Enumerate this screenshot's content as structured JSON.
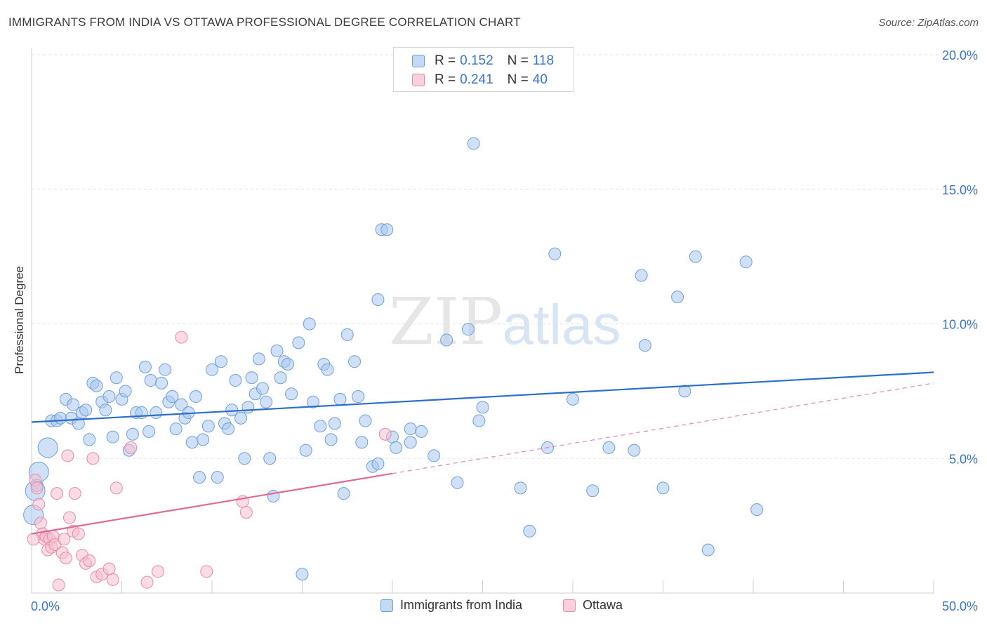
{
  "header": {
    "title": "IMMIGRANTS FROM INDIA VS OTTAWA PROFESSIONAL DEGREE CORRELATION CHART",
    "source": "Source: ZipAtlas.com"
  },
  "watermark": {
    "zip": "ZIP",
    "atlas": "atlas"
  },
  "legend": {
    "rows": [
      {
        "r_label": "R =",
        "r_value": "0.152",
        "n_label": "N =",
        "n_value": "118",
        "color": "#aac8f0"
      },
      {
        "r_label": "R =",
        "r_value": "0.241",
        "n_label": "N =",
        "n_value": "40",
        "color": "#f8bfd0"
      }
    ]
  },
  "bottom_legend": [
    {
      "label": "Immigrants from India",
      "color": "#aac8f0"
    },
    {
      "label": "Ottawa",
      "color": "#f8bfd0"
    }
  ],
  "colors": {
    "india_fill": "#aac8f0",
    "india_stroke": "#6f9fd8",
    "india_line": "#2a6fcc",
    "ottawa_fill": "#f8bfd0",
    "ottawa_stroke": "#e98aa9",
    "ottawa_line": "#e06a96",
    "tick_label": "#3a74c9",
    "grid": "#e3e3e3"
  },
  "chart_data": {
    "type": "scatter",
    "title": "IMMIGRANTS FROM INDIA VS OTTAWA PROFESSIONAL DEGREE CORRELATION CHART",
    "xlabel": "",
    "ylabel": "Professional Degree",
    "xlim": [
      0,
      50
    ],
    "ylim": [
      0,
      20
    ],
    "x_tick_labels": [
      {
        "value": 0,
        "label": "0.0%"
      },
      {
        "value": 50,
        "label": "50.0%"
      }
    ],
    "y_tick_labels": [
      {
        "value": 5,
        "label": "5.0%"
      },
      {
        "value": 10,
        "label": "10.0%"
      },
      {
        "value": 15,
        "label": "15.0%"
      },
      {
        "value": 20,
        "label": "20.0%"
      }
    ],
    "grid": true,
    "legend_position": "top-center",
    "series": [
      {
        "name": "Immigrants from India",
        "r": 0.152,
        "n": 118,
        "trend": {
          "x": [
            0,
            50
          ],
          "y": [
            6.35,
            8.2
          ],
          "style": "solid"
        },
        "points": [
          [
            0.4,
            4.5
          ],
          [
            0.9,
            5.4
          ],
          [
            1.1,
            6.4
          ],
          [
            1.4,
            6.4
          ],
          [
            1.6,
            6.5
          ],
          [
            1.9,
            7.2
          ],
          [
            2.2,
            6.5
          ],
          [
            2.3,
            7.0
          ],
          [
            2.6,
            6.3
          ],
          [
            2.8,
            6.7
          ],
          [
            3.0,
            6.8
          ],
          [
            3.2,
            5.7
          ],
          [
            3.4,
            7.8
          ],
          [
            3.6,
            7.7
          ],
          [
            3.9,
            7.1
          ],
          [
            4.1,
            6.8
          ],
          [
            4.3,
            7.3
          ],
          [
            4.5,
            5.8
          ],
          [
            4.7,
            8.0
          ],
          [
            5.0,
            7.2
          ],
          [
            5.2,
            7.5
          ],
          [
            5.4,
            5.3
          ],
          [
            5.6,
            5.9
          ],
          [
            5.8,
            6.7
          ],
          [
            6.1,
            6.7
          ],
          [
            6.3,
            8.4
          ],
          [
            6.5,
            6.0
          ],
          [
            6.6,
            7.9
          ],
          [
            6.9,
            6.7
          ],
          [
            7.2,
            7.8
          ],
          [
            7.4,
            8.3
          ],
          [
            7.6,
            7.1
          ],
          [
            7.8,
            7.3
          ],
          [
            8.0,
            6.1
          ],
          [
            8.3,
            7.0
          ],
          [
            8.5,
            6.5
          ],
          [
            8.7,
            6.7
          ],
          [
            8.9,
            5.6
          ],
          [
            9.1,
            7.3
          ],
          [
            9.3,
            4.3
          ],
          [
            9.5,
            5.7
          ],
          [
            9.8,
            6.2
          ],
          [
            10.0,
            8.3
          ],
          [
            10.3,
            4.3
          ],
          [
            10.5,
            8.6
          ],
          [
            10.7,
            6.3
          ],
          [
            10.9,
            6.1
          ],
          [
            11.1,
            6.8
          ],
          [
            11.3,
            7.9
          ],
          [
            11.6,
            6.5
          ],
          [
            11.8,
            5.0
          ],
          [
            12.0,
            6.9
          ],
          [
            12.2,
            8.0
          ],
          [
            12.4,
            7.4
          ],
          [
            12.6,
            8.7
          ],
          [
            12.8,
            7.6
          ],
          [
            13.0,
            7.1
          ],
          [
            13.2,
            5.0
          ],
          [
            13.4,
            3.6
          ],
          [
            13.6,
            9.0
          ],
          [
            13.8,
            8.0
          ],
          [
            14.0,
            8.6
          ],
          [
            14.2,
            8.5
          ],
          [
            14.4,
            7.4
          ],
          [
            14.8,
            9.3
          ],
          [
            15.0,
            0.7
          ],
          [
            15.2,
            5.3
          ],
          [
            15.4,
            10.0
          ],
          [
            15.6,
            7.1
          ],
          [
            16.0,
            6.2
          ],
          [
            16.2,
            8.5
          ],
          [
            16.4,
            8.3
          ],
          [
            16.6,
            5.7
          ],
          [
            16.8,
            6.3
          ],
          [
            17.1,
            7.2
          ],
          [
            17.3,
            3.7
          ],
          [
            17.5,
            9.6
          ],
          [
            17.9,
            8.6
          ],
          [
            18.1,
            7.3
          ],
          [
            18.3,
            5.6
          ],
          [
            18.5,
            6.4
          ],
          [
            18.9,
            4.7
          ],
          [
            19.2,
            4.8
          ],
          [
            19.2,
            10.9
          ],
          [
            19.4,
            13.5
          ],
          [
            19.7,
            13.5
          ],
          [
            20.0,
            5.8
          ],
          [
            20.2,
            5.4
          ],
          [
            21.0,
            6.1
          ],
          [
            21.0,
            5.6
          ],
          [
            21.6,
            6.0
          ],
          [
            22.3,
            5.1
          ],
          [
            23.0,
            9.4
          ],
          [
            23.6,
            4.1
          ],
          [
            24.2,
            9.8
          ],
          [
            24.5,
            16.7
          ],
          [
            24.8,
            6.4
          ],
          [
            25.0,
            6.9
          ],
          [
            27.1,
            3.9
          ],
          [
            27.6,
            2.3
          ],
          [
            28.6,
            5.4
          ],
          [
            29.0,
            12.6
          ],
          [
            30.0,
            7.2
          ],
          [
            31.1,
            3.8
          ],
          [
            32.0,
            5.4
          ],
          [
            33.4,
            5.3
          ],
          [
            33.8,
            11.8
          ],
          [
            34.0,
            9.2
          ],
          [
            35.0,
            3.9
          ],
          [
            35.8,
            11.0
          ],
          [
            36.2,
            7.5
          ],
          [
            36.8,
            12.5
          ],
          [
            37.5,
            1.6
          ],
          [
            39.6,
            12.3
          ],
          [
            40.2,
            3.1
          ],
          [
            0.2,
            3.8
          ],
          [
            0.1,
            2.9
          ],
          [
            0.3,
            4.0
          ]
        ]
      },
      {
        "name": "Ottawa",
        "r": 0.241,
        "n": 40,
        "trend": {
          "x": [
            0,
            50
          ],
          "y": [
            2.2,
            7.8
          ],
          "solid_until_x": 20,
          "style": "solid-then-dashed"
        },
        "points": [
          [
            0.2,
            4.2
          ],
          [
            0.3,
            3.9
          ],
          [
            0.4,
            3.3
          ],
          [
            0.5,
            2.6
          ],
          [
            0.6,
            2.2
          ],
          [
            0.7,
            2.0
          ],
          [
            0.8,
            2.1
          ],
          [
            0.9,
            1.6
          ],
          [
            1.0,
            2.0
          ],
          [
            1.1,
            1.7
          ],
          [
            1.2,
            2.1
          ],
          [
            1.3,
            1.8
          ],
          [
            1.4,
            3.7
          ],
          [
            1.5,
            0.3
          ],
          [
            1.7,
            1.5
          ],
          [
            1.8,
            2.0
          ],
          [
            1.9,
            1.3
          ],
          [
            2.0,
            5.1
          ],
          [
            2.1,
            2.8
          ],
          [
            2.3,
            2.3
          ],
          [
            2.4,
            3.7
          ],
          [
            2.6,
            2.2
          ],
          [
            2.8,
            1.4
          ],
          [
            3.0,
            1.1
          ],
          [
            3.2,
            1.2
          ],
          [
            3.4,
            5.0
          ],
          [
            3.6,
            0.6
          ],
          [
            3.9,
            0.7
          ],
          [
            4.3,
            0.9
          ],
          [
            4.5,
            0.5
          ],
          [
            4.7,
            3.9
          ],
          [
            5.5,
            5.4
          ],
          [
            6.4,
            0.4
          ],
          [
            7.0,
            0.8
          ],
          [
            8.3,
            9.5
          ],
          [
            9.7,
            0.8
          ],
          [
            11.7,
            3.4
          ],
          [
            11.9,
            3.0
          ],
          [
            19.6,
            5.9
          ],
          [
            0.1,
            2.0
          ]
        ]
      }
    ]
  }
}
